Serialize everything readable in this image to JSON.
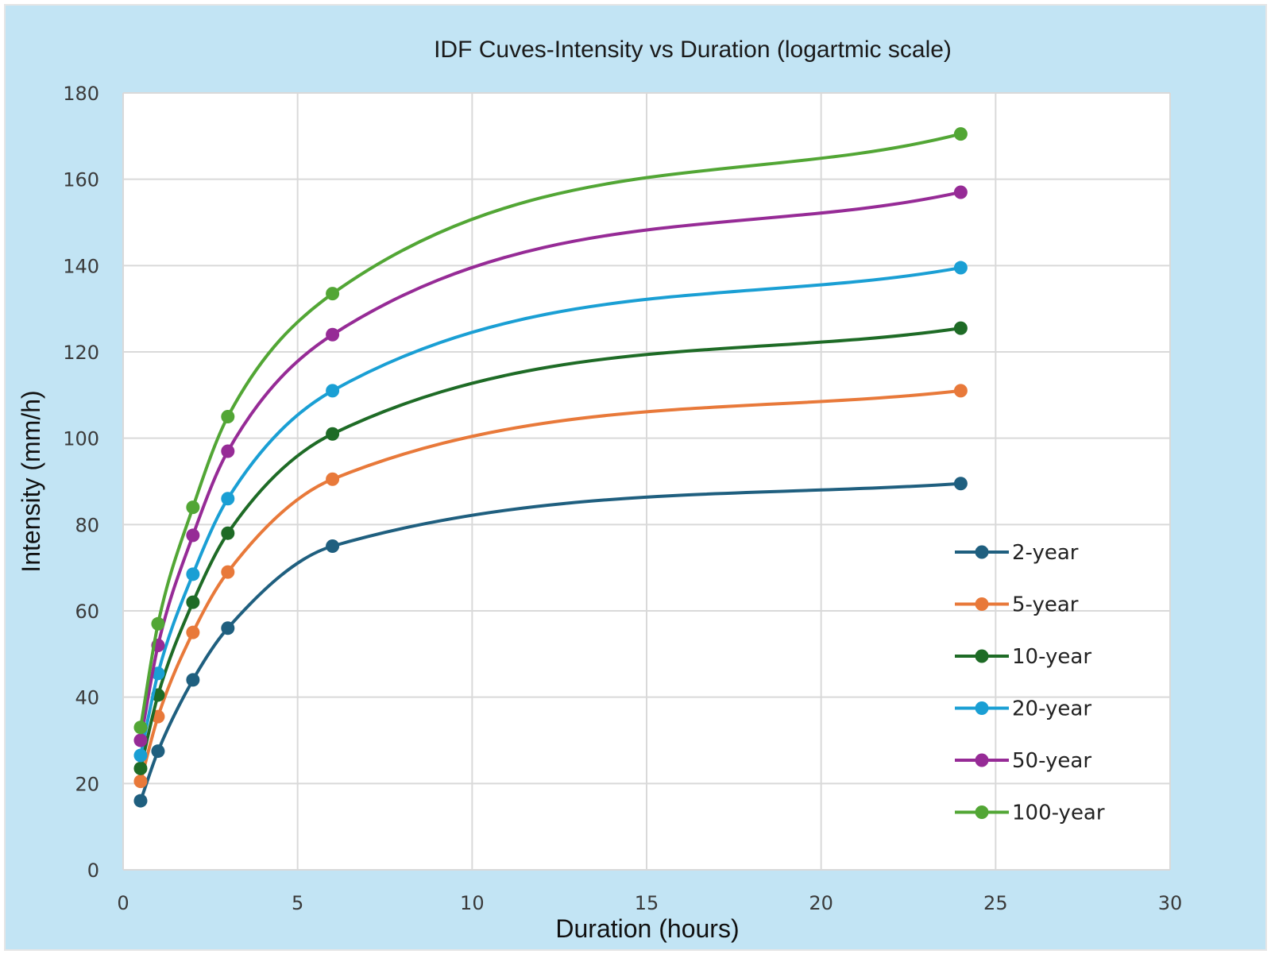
{
  "chart_data": {
    "type": "line",
    "title": "IDF Cuves-Intensity vs Duration (logartmic scale)",
    "xlabel": "Duration (hours)",
    "ylabel": "Intensity (mm/h)",
    "xlim": [
      0,
      30
    ],
    "ylim": [
      0,
      180
    ],
    "xticks": [
      0,
      5,
      10,
      15,
      20,
      25,
      30
    ],
    "yticks": [
      0,
      20,
      40,
      60,
      80,
      100,
      120,
      140,
      160,
      180
    ],
    "grid": true,
    "smooth": true,
    "legend_position": "right",
    "x": [
      0.5,
      1,
      2,
      3,
      6,
      24
    ],
    "series": [
      {
        "name": "2-year",
        "color": "#1f5f7f",
        "values": [
          16,
          27.5,
          44,
          56,
          75,
          89.5
        ]
      },
      {
        "name": "5-year",
        "color": "#e8793a",
        "values": [
          20.5,
          35.5,
          55,
          69,
          90.5,
          111
        ]
      },
      {
        "name": "10-year",
        "color": "#1e6b26",
        "values": [
          23.5,
          40.5,
          62,
          78,
          101,
          125.5
        ]
      },
      {
        "name": "20-year",
        "color": "#1a9fd4",
        "values": [
          26.5,
          45.5,
          68.5,
          86,
          111,
          139.5
        ]
      },
      {
        "name": "50-year",
        "color": "#962b96",
        "values": [
          30,
          52,
          77.5,
          97,
          124,
          157
        ]
      },
      {
        "name": "100-year",
        "color": "#52a635",
        "values": [
          33,
          57,
          84,
          105,
          133.5,
          170.5
        ]
      }
    ]
  },
  "colors": {
    "frame_background": "#c2e4f4",
    "plot_background": "#ffffff",
    "gridline": "#d9d9d9"
  }
}
